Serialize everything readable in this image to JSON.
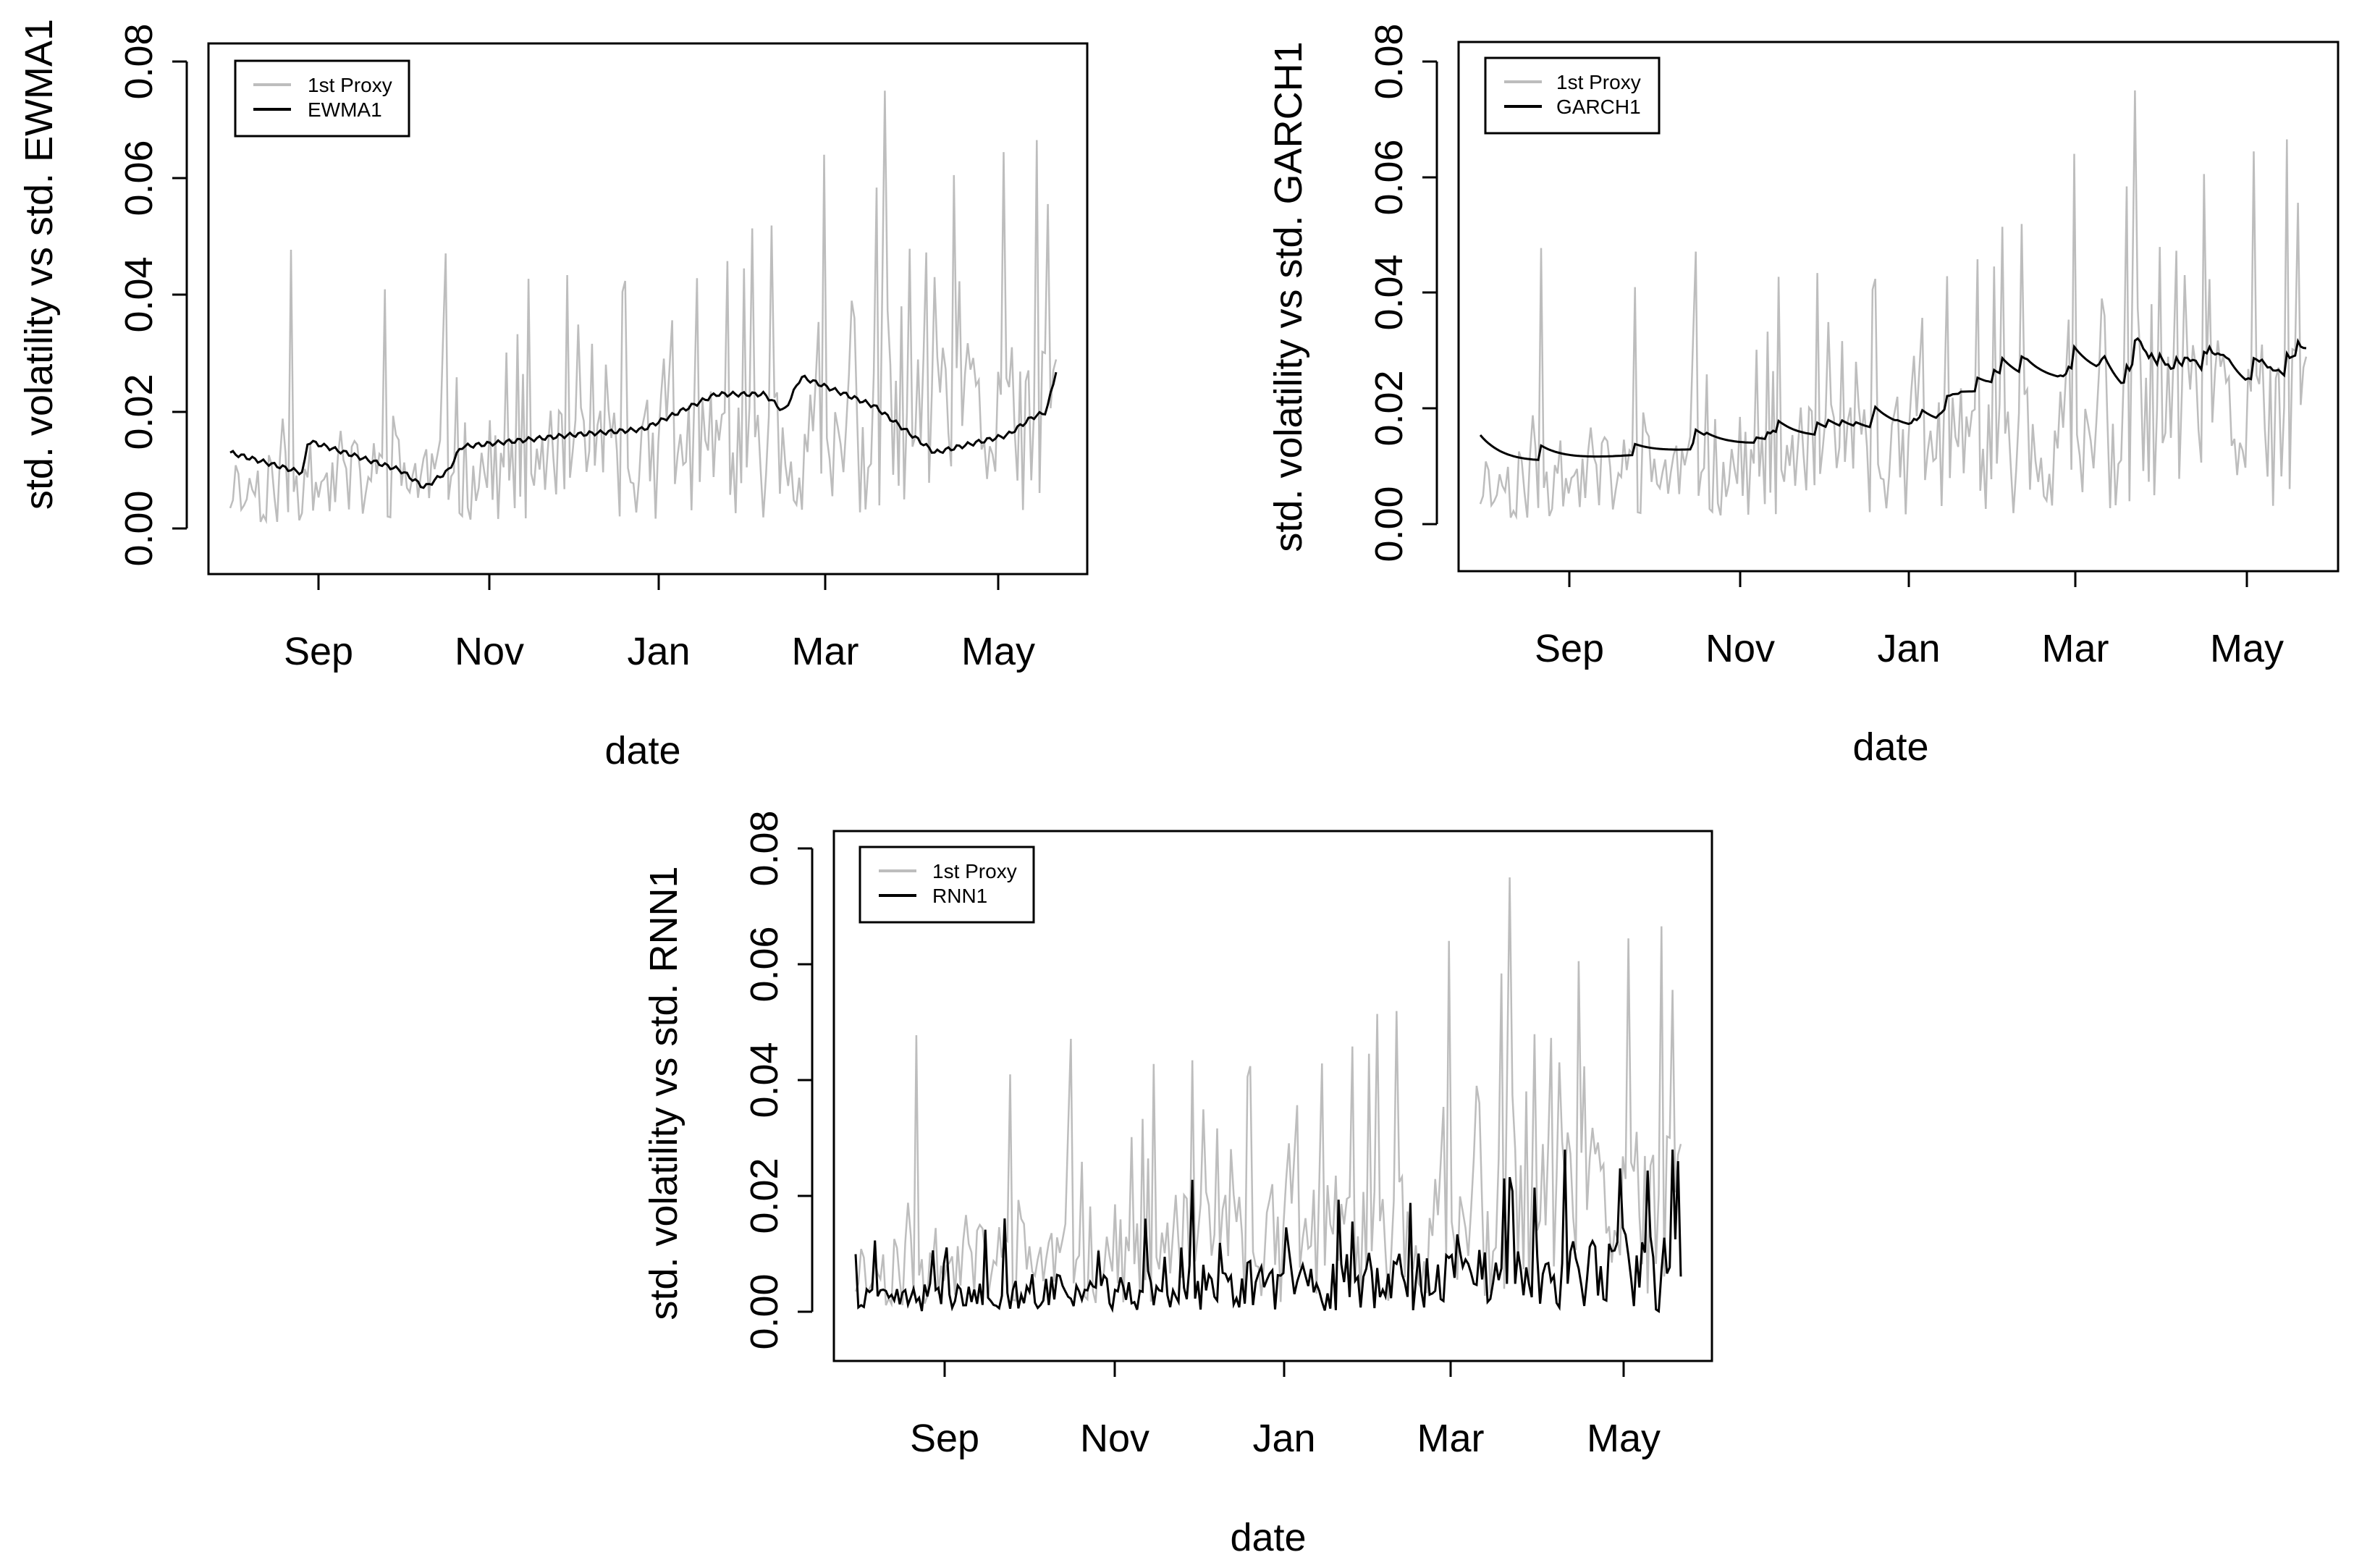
{
  "chart_data": [
    {
      "id": "ewma",
      "type": "line",
      "xlabel": "date",
      "ylabel": "std. volatility vs std. EWMA1",
      "xticks": [
        "Sep",
        "Nov",
        "Jan",
        "Mar",
        "May"
      ],
      "yticks": [
        "0.00",
        "0.02",
        "0.04",
        "0.06",
        "0.08"
      ],
      "ylim": [
        0,
        0.08
      ],
      "legend": [
        "1st Proxy",
        "EWMA1"
      ],
      "legend_position": "top-left",
      "series": [
        {
          "name": "1st Proxy",
          "color": "#bdbdbd",
          "seed": 11,
          "model": "proxy"
        },
        {
          "name": "EWMA1",
          "color": "#000000",
          "seed": 21,
          "model": "ewma"
        }
      ]
    },
    {
      "id": "garch",
      "type": "line",
      "xlabel": "date",
      "ylabel": "std. volatility vs std. GARCH1",
      "xticks": [
        "Sep",
        "Nov",
        "Jan",
        "Mar",
        "May"
      ],
      "yticks": [
        "0.00",
        "0.02",
        "0.04",
        "0.06",
        "0.08"
      ],
      "ylim": [
        0,
        0.08
      ],
      "legend": [
        "1st Proxy",
        "GARCH1"
      ],
      "legend_position": "top-left",
      "series": [
        {
          "name": "1st Proxy",
          "color": "#bdbdbd",
          "seed": 11,
          "model": "proxy"
        },
        {
          "name": "GARCH1",
          "color": "#000000",
          "seed": 31,
          "model": "garch"
        }
      ]
    },
    {
      "id": "rnn",
      "type": "line",
      "xlabel": "date",
      "ylabel": "std. volatility vs std. RNN1",
      "xticks": [
        "Sep",
        "Nov",
        "Jan",
        "Mar",
        "May"
      ],
      "yticks": [
        "0.00",
        "0.02",
        "0.04",
        "0.06",
        "0.08"
      ],
      "ylim": [
        0,
        0.08
      ],
      "legend": [
        "1st Proxy",
        "RNN1"
      ],
      "legend_position": "top-left",
      "series": [
        {
          "name": "1st Proxy",
          "color": "#bdbdbd",
          "seed": 11,
          "model": "proxy"
        },
        {
          "name": "RNN1",
          "color": "#000000",
          "seed": 41,
          "model": "rnn"
        }
      ]
    }
  ]
}
